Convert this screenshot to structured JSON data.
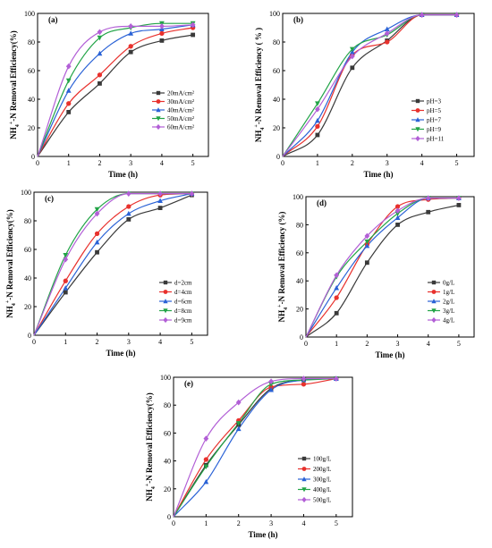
{
  "chart_data": [
    {
      "type": "line",
      "panel_label": "(a)",
      "xlabel": "Time (h)",
      "ylabel_prefix": "NH",
      "ylabel_sub": "4",
      "ylabel_sup": "+",
      "ylabel_suffix": "-N  Removal Efficiency(%)",
      "xlim": [
        0,
        5.5
      ],
      "ylim": [
        0,
        100
      ],
      "xticks": [
        "0",
        "1",
        "2",
        "3",
        "4",
        "5"
      ],
      "yticks": [
        "0",
        "20",
        "40",
        "60",
        "80",
        "100"
      ],
      "legend_position": "center-right",
      "x": [
        1,
        2,
        3,
        4,
        5
      ],
      "series": [
        {
          "name": "20mA/cm²",
          "color": "#3a3a3a",
          "marker": "square",
          "values": [
            31,
            51,
            73,
            81,
            85
          ]
        },
        {
          "name": "30mA/cm²",
          "color": "#e8312d",
          "marker": "circle",
          "values": [
            37,
            57,
            77,
            86,
            90
          ]
        },
        {
          "name": "40mA/cm²",
          "color": "#2a62d6",
          "marker": "triangle-up",
          "values": [
            46,
            72,
            86,
            89,
            92
          ]
        },
        {
          "name": "50mA/cm²",
          "color": "#22a447",
          "marker": "triangle-down",
          "values": [
            53,
            83,
            90,
            93,
            93
          ]
        },
        {
          "name": "60mA/cm²",
          "color": "#b25fd6",
          "marker": "diamond",
          "values": [
            63,
            87,
            91,
            91,
            92
          ]
        }
      ]
    },
    {
      "type": "line",
      "panel_label": "(b)",
      "xlabel": "Time (h)",
      "ylabel_prefix": "NH",
      "ylabel_sub": "4",
      "ylabel_sup": "+",
      "ylabel_suffix": "-N Removal Efficiency  ( % )",
      "xlim": [
        0,
        5.5
      ],
      "ylim": [
        0,
        100
      ],
      "xticks": [
        "0",
        "1",
        "2",
        "3",
        "4",
        "5"
      ],
      "yticks": [
        "0",
        "20",
        "40",
        "60",
        "80",
        "100"
      ],
      "legend_position": "bottom-right",
      "x": [
        1,
        2,
        3,
        4,
        5
      ],
      "series": [
        {
          "name": "pH=3",
          "color": "#3a3a3a",
          "marker": "square",
          "values": [
            15,
            62,
            81,
            99,
            99
          ]
        },
        {
          "name": "pH=5",
          "color": "#e8312d",
          "marker": "circle",
          "values": [
            21,
            71,
            80,
            99,
            99
          ]
        },
        {
          "name": "pH=7",
          "color": "#2a62d6",
          "marker": "triangle-up",
          "values": [
            25,
            73,
            89,
            99,
            99
          ]
        },
        {
          "name": "pH=9",
          "color": "#22a447",
          "marker": "triangle-down",
          "values": [
            37,
            75,
            85,
            99,
            99
          ]
        },
        {
          "name": "pH=11",
          "color": "#b25fd6",
          "marker": "diamond",
          "values": [
            33,
            70,
            86,
            99,
            99
          ]
        }
      ]
    },
    {
      "type": "line",
      "panel_label": "(c)",
      "xlabel": "Time (h)",
      "ylabel_prefix": "NH",
      "ylabel_sub": "4",
      "ylabel_sup": "+",
      "ylabel_suffix": "-N Removal Efficiency(%)",
      "xlim": [
        0,
        5.5
      ],
      "ylim": [
        0,
        100
      ],
      "xticks": [
        "0",
        "1",
        "2",
        "3",
        "4",
        "5"
      ],
      "yticks": [
        "0",
        "20",
        "40",
        "60",
        "80",
        "100"
      ],
      "legend_position": "bottom-right",
      "x": [
        1,
        2,
        3,
        4,
        5
      ],
      "series": [
        {
          "name": "d=2cm",
          "color": "#3a3a3a",
          "marker": "square",
          "values": [
            30,
            58,
            81,
            89,
            98
          ]
        },
        {
          "name": "d=4cm",
          "color": "#e8312d",
          "marker": "circle",
          "values": [
            38,
            71,
            90,
            98,
            99
          ]
        },
        {
          "name": "d=6cm",
          "color": "#2a62d6",
          "marker": "triangle-up",
          "values": [
            33,
            65,
            85,
            94,
            99
          ]
        },
        {
          "name": "d=8cm",
          "color": "#22a447",
          "marker": "triangle-down",
          "values": [
            56,
            88,
            99,
            99,
            99
          ]
        },
        {
          "name": "d=9cm",
          "color": "#b25fd6",
          "marker": "diamond",
          "values": [
            53,
            85,
            99,
            99,
            99
          ]
        }
      ]
    },
    {
      "type": "line",
      "panel_label": "(d)",
      "xlabel": "Time (h)",
      "ylabel_prefix": "NH",
      "ylabel_sub": "4",
      "ylabel_sup": "+",
      "ylabel_suffix": "-N Removal Efficiency  (%)",
      "xlim": [
        0,
        5.5
      ],
      "ylim": [
        0,
        100
      ],
      "xticks": [
        "0",
        "1",
        "2",
        "3",
        "4",
        "5"
      ],
      "yticks": [
        "0",
        "20",
        "40",
        "60",
        "80",
        "100"
      ],
      "legend_position": "bottom-right",
      "x": [
        1,
        2,
        3,
        4,
        5
      ],
      "series": [
        {
          "name": "0g/L",
          "color": "#3a3a3a",
          "marker": "square",
          "values": [
            17,
            53,
            80,
            89,
            94
          ]
        },
        {
          "name": "1g/L",
          "color": "#e8312d",
          "marker": "circle",
          "values": [
            28,
            66,
            93,
            98,
            99
          ]
        },
        {
          "name": "2g/L",
          "color": "#2a62d6",
          "marker": "triangle-up",
          "values": [
            35,
            65,
            85,
            99,
            99
          ]
        },
        {
          "name": "3g/L",
          "color": "#22a447",
          "marker": "triangle-down",
          "values": [
            43,
            68,
            88,
            99,
            99
          ]
        },
        {
          "name": "4g/L",
          "color": "#b25fd6",
          "marker": "diamond",
          "values": [
            44,
            72,
            90,
            99,
            99
          ]
        }
      ]
    },
    {
      "type": "line",
      "panel_label": "(e)",
      "xlabel": "Time (h)",
      "ylabel_prefix": "NH",
      "ylabel_sub": "4",
      "ylabel_sup": "+",
      "ylabel_suffix": "-N Removal Efficiency(%)",
      "xlim": [
        0,
        5.5
      ],
      "ylim": [
        0,
        100
      ],
      "xticks": [
        "0",
        "1",
        "2",
        "3",
        "4",
        "5"
      ],
      "yticks": [
        "0",
        "20",
        "40",
        "60",
        "80",
        "100"
      ],
      "legend_position": "bottom-right",
      "x": [
        1,
        2,
        3,
        4,
        5
      ],
      "series": [
        {
          "name": "100g/L",
          "color": "#3a3a3a",
          "marker": "square",
          "values": [
            37,
            66,
            92,
            98,
            99
          ]
        },
        {
          "name": "200g/L",
          "color": "#e8312d",
          "marker": "circle",
          "values": [
            41,
            69,
            93,
            95,
            99
          ]
        },
        {
          "name": "300g/L",
          "color": "#2a62d6",
          "marker": "triangle-up",
          "values": [
            25,
            63,
            91,
            98,
            99
          ]
        },
        {
          "name": "400g/L",
          "color": "#22a447",
          "marker": "triangle-down",
          "values": [
            36,
            67,
            95,
            98,
            99
          ]
        },
        {
          "name": "500g/L",
          "color": "#b25fd6",
          "marker": "diamond",
          "values": [
            56,
            82,
            97,
            99,
            99
          ]
        }
      ]
    }
  ]
}
